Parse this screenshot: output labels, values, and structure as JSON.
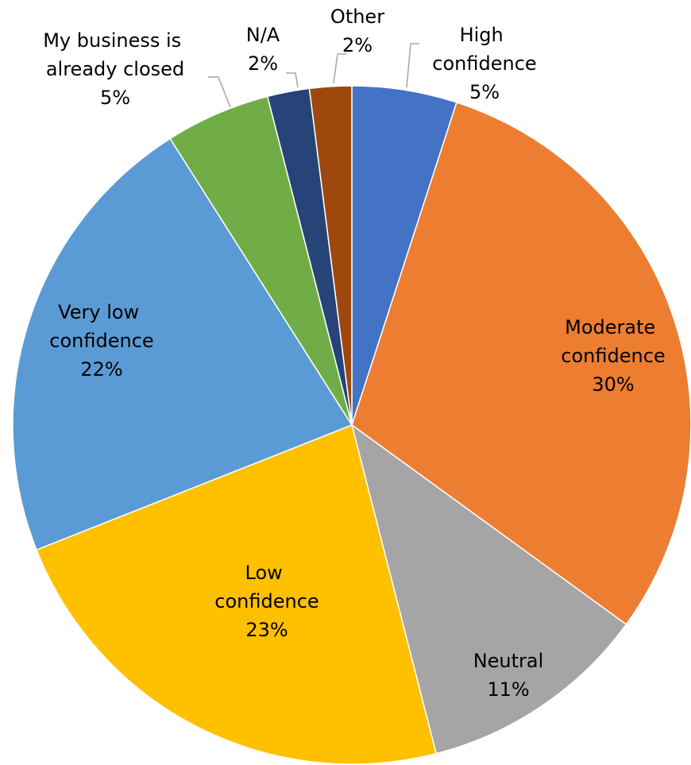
{
  "chart_data": {
    "type": "pie",
    "categories": [
      "High confidence",
      "Moderate confidence",
      "Neutral",
      "Low confidence",
      "Very low confidence",
      "My business is already closed",
      "N/A",
      "Other"
    ],
    "values": [
      5,
      30,
      11,
      23,
      22,
      5,
      2,
      2
    ],
    "value_labels": [
      "5%",
      "30%",
      "11%",
      "23%",
      "22%",
      "5%",
      "2%",
      "2%"
    ],
    "colors": [
      "#4472c4",
      "#ed7d31",
      "#a5a5a5",
      "#ffc000",
      "#5b9bd5",
      "#70ad47",
      "#264478",
      "#9e480e"
    ]
  }
}
